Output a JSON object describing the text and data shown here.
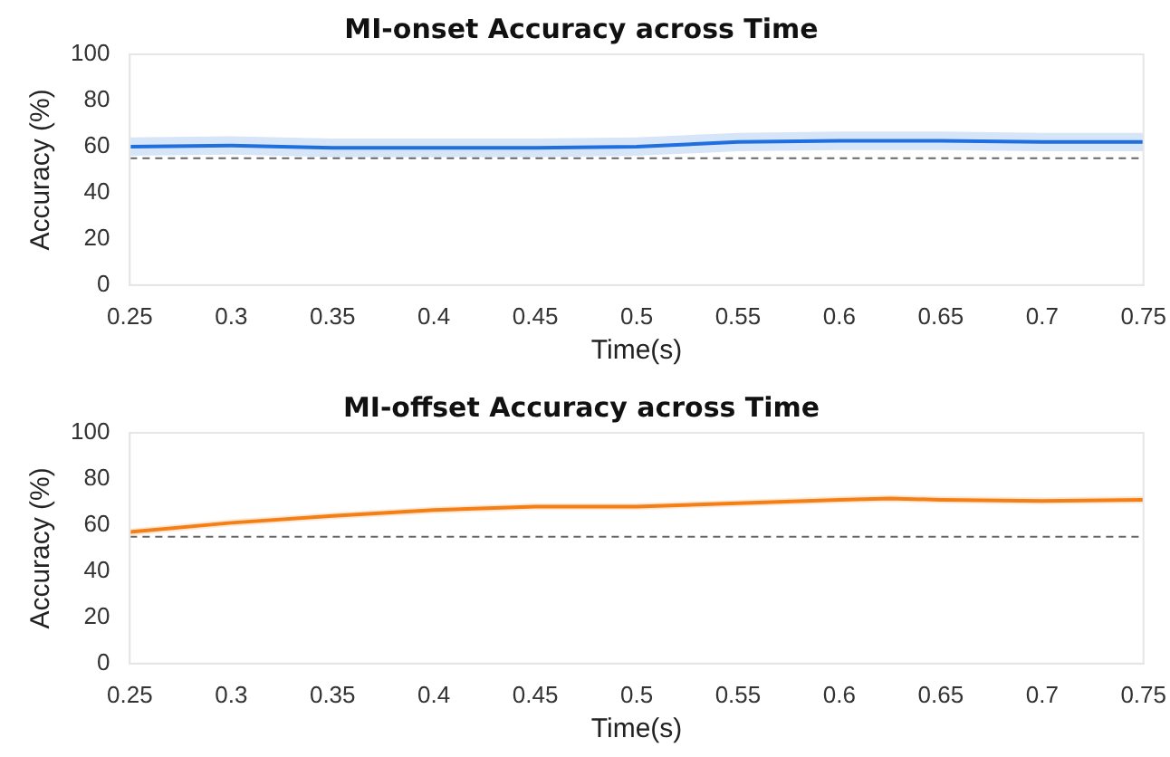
{
  "chart_data": [
    {
      "type": "line",
      "title": "MI-onset Accuracy across Time",
      "xlabel": "Time(s)",
      "ylabel": "Accuracy (%)",
      "x": [
        0.25,
        0.3,
        0.35,
        0.4,
        0.45,
        0.5,
        0.55,
        0.6,
        0.65,
        0.7,
        0.75
      ],
      "series": [
        {
          "color": "#1f6fe0",
          "values": [
            60,
            60.5,
            59.5,
            59.5,
            59.5,
            60,
            62,
            62.5,
            62.5,
            62,
            62
          ],
          "lower": [
            56,
            56.5,
            55.5,
            55.5,
            55.5,
            56,
            58,
            58.5,
            58.5,
            58,
            58
          ],
          "upper": [
            64,
            64.5,
            63.5,
            63.5,
            63.5,
            64,
            66,
            66.5,
            66.5,
            66,
            66
          ]
        }
      ],
      "xlim": [
        0.25,
        0.75
      ],
      "xticks": [
        0.25,
        0.3,
        0.35,
        0.4,
        0.45,
        0.5,
        0.55,
        0.6,
        0.65,
        0.7,
        0.75
      ],
      "ylim": [
        0,
        100
      ],
      "yticks": [
        0,
        20,
        40,
        60,
        80,
        100
      ],
      "grid": false,
      "legend": false,
      "marker": "none",
      "line_style": "solid",
      "ref_lines": [
        {
          "axis": "y",
          "value": 55,
          "color": "#666666",
          "line_style": "dashed"
        }
      ]
    },
    {
      "type": "line",
      "title": "MI-offset Accuracy across Time",
      "xlabel": "Time(s)",
      "ylabel": "Accuracy (%)",
      "x": [
        0.25,
        0.3,
        0.35,
        0.4,
        0.45,
        0.5,
        0.55,
        0.6,
        0.625,
        0.65,
        0.7,
        0.75
      ],
      "series": [
        {
          "color": "#f57f17",
          "values": [
            57,
            61,
            64,
            66.5,
            68,
            68,
            69.5,
            71,
            71.5,
            71,
            70.5,
            71
          ],
          "lower": [
            55.5,
            59.5,
            62.5,
            65,
            66.5,
            66.5,
            68,
            69.5,
            70,
            69.5,
            69,
            69.5
          ],
          "upper": [
            58.5,
            62.5,
            65.5,
            68,
            69.5,
            69.5,
            71,
            72.5,
            73,
            72.5,
            72,
            72.5
          ]
        }
      ],
      "xlim": [
        0.25,
        0.75
      ],
      "xticks": [
        0.25,
        0.3,
        0.35,
        0.4,
        0.45,
        0.5,
        0.55,
        0.6,
        0.65,
        0.7,
        0.75
      ],
      "ylim": [
        0,
        100
      ],
      "yticks": [
        0,
        20,
        40,
        60,
        80,
        100
      ],
      "grid": false,
      "legend": false,
      "marker": "none",
      "line_style": "solid",
      "ref_lines": [
        {
          "axis": "y",
          "value": 55,
          "color": "#666666",
          "line_style": "dashed"
        }
      ]
    }
  ]
}
